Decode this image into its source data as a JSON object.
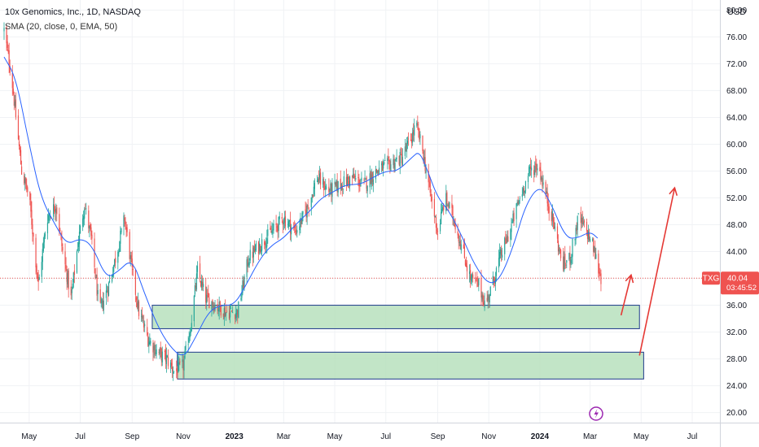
{
  "header": {
    "title": "10x Genomics, Inc., 1D, NASDAQ",
    "indicator": "SMA (20, close, 0, EMA, 50)",
    "currency": "USD"
  },
  "badges": {
    "symbol": "TXG",
    "price": "40.04",
    "countdown": "03:45:52"
  },
  "colors": {
    "up": "#26a69a",
    "down": "#ef5350",
    "sma": "#2962ff",
    "zone_fill": "#b7e1bd",
    "zone_stroke": "#1e3a8a",
    "arrow": "#e53935",
    "price_line": "#ef5350"
  },
  "chart_data": {
    "type": "candlestick",
    "symbol": "TXG",
    "x_ticks": [
      "May",
      "Jul",
      "Sep",
      "Nov",
      "2023",
      "Mar",
      "May",
      "Jul",
      "Sep",
      "Nov",
      "2024",
      "Mar",
      "May",
      "Jul"
    ],
    "y_ticks": [
      20,
      24,
      28,
      32,
      36,
      40,
      44,
      48,
      52,
      56,
      60,
      64,
      68,
      72,
      76,
      80
    ],
    "ylim": [
      18.5,
      81.5
    ],
    "last_price": 40.04,
    "series": [
      {
        "name": "price",
        "points": [
          [
            "2022-04-01",
            77
          ],
          [
            "2022-04-10",
            70
          ],
          [
            "2022-04-22",
            56
          ],
          [
            "2022-05-01",
            52
          ],
          [
            "2022-05-12",
            39
          ],
          [
            "2022-05-22",
            49
          ],
          [
            "2022-06-02",
            51
          ],
          [
            "2022-06-10",
            44
          ],
          [
            "2022-06-20",
            37
          ],
          [
            "2022-06-28",
            45
          ],
          [
            "2022-07-06",
            51
          ],
          [
            "2022-07-14",
            46
          ],
          [
            "2022-07-24",
            35
          ],
          [
            "2022-08-04",
            39
          ],
          [
            "2022-08-14",
            44
          ],
          [
            "2022-08-23",
            49
          ],
          [
            "2022-09-01",
            41
          ],
          [
            "2022-09-09",
            35
          ],
          [
            "2022-09-20",
            31
          ],
          [
            "2022-10-01",
            29
          ],
          [
            "2022-10-12",
            28
          ],
          [
            "2022-10-22",
            26
          ],
          [
            "2022-11-01",
            27
          ],
          [
            "2022-11-10",
            33
          ],
          [
            "2022-11-18",
            41
          ],
          [
            "2022-11-28",
            37
          ],
          [
            "2022-12-10",
            36
          ],
          [
            "2022-12-22",
            35
          ],
          [
            "2023-01-05",
            35
          ],
          [
            "2023-01-18",
            43
          ],
          [
            "2023-02-01",
            45
          ],
          [
            "2023-02-15",
            47
          ],
          [
            "2023-03-01",
            49
          ],
          [
            "2023-03-15",
            47
          ],
          [
            "2023-03-28",
            50
          ],
          [
            "2023-04-10",
            55
          ],
          [
            "2023-04-24",
            53
          ],
          [
            "2023-05-08",
            54
          ],
          [
            "2023-05-22",
            55
          ],
          [
            "2023-06-05",
            54
          ],
          [
            "2023-06-20",
            56
          ],
          [
            "2023-07-05",
            57
          ],
          [
            "2023-07-20",
            58
          ],
          [
            "2023-08-01",
            61
          ],
          [
            "2023-08-06",
            63
          ],
          [
            "2023-08-14",
            59
          ],
          [
            "2023-08-24",
            52
          ],
          [
            "2023-09-01",
            47
          ],
          [
            "2023-09-10",
            52
          ],
          [
            "2023-09-20",
            49
          ],
          [
            "2023-10-01",
            44
          ],
          [
            "2023-10-10",
            40
          ],
          [
            "2023-10-20",
            39
          ],
          [
            "2023-10-28",
            36
          ],
          [
            "2023-11-05",
            39
          ],
          [
            "2023-11-14",
            43
          ],
          [
            "2023-11-26",
            47
          ],
          [
            "2023-12-08",
            52
          ],
          [
            "2023-12-20",
            56
          ],
          [
            "2023-12-30",
            57
          ],
          [
            "2024-01-07",
            53
          ],
          [
            "2024-01-16",
            49
          ],
          [
            "2024-01-28",
            42
          ],
          [
            "2024-02-06",
            43
          ],
          [
            "2024-02-16",
            49
          ],
          [
            "2024-02-26",
            47
          ],
          [
            "2024-03-04",
            45
          ],
          [
            "2024-03-14",
            40
          ]
        ]
      },
      {
        "name": "SMA",
        "points": [
          [
            "2022-04-01",
            73
          ],
          [
            "2022-04-15",
            70
          ],
          [
            "2022-05-01",
            60
          ],
          [
            "2022-05-15",
            52
          ],
          [
            "2022-06-01",
            48
          ],
          [
            "2022-06-15",
            45
          ],
          [
            "2022-07-01",
            46
          ],
          [
            "2022-07-15",
            45
          ],
          [
            "2022-08-01",
            40
          ],
          [
            "2022-08-15",
            41
          ],
          [
            "2022-09-01",
            43
          ],
          [
            "2022-09-15",
            38
          ],
          [
            "2022-10-01",
            33
          ],
          [
            "2022-10-15",
            30
          ],
          [
            "2022-11-01",
            28
          ],
          [
            "2022-11-15",
            31
          ],
          [
            "2022-12-01",
            35
          ],
          [
            "2022-12-15",
            36
          ],
          [
            "2023-01-01",
            36
          ],
          [
            "2023-01-15",
            39
          ],
          [
            "2023-02-01",
            43
          ],
          [
            "2023-02-15",
            45
          ],
          [
            "2023-03-01",
            46
          ],
          [
            "2023-03-15",
            48
          ],
          [
            "2023-04-01",
            50
          ],
          [
            "2023-04-15",
            52
          ],
          [
            "2023-05-01",
            53
          ],
          [
            "2023-05-15",
            54
          ],
          [
            "2023-06-01",
            54
          ],
          [
            "2023-06-15",
            55
          ],
          [
            "2023-07-01",
            56
          ],
          [
            "2023-07-15",
            56
          ],
          [
            "2023-08-01",
            58
          ],
          [
            "2023-08-10",
            59
          ],
          [
            "2023-08-20",
            56
          ],
          [
            "2023-09-01",
            52
          ],
          [
            "2023-09-15",
            50
          ],
          [
            "2023-10-01",
            46
          ],
          [
            "2023-10-15",
            42
          ],
          [
            "2023-11-01",
            39
          ],
          [
            "2023-11-15",
            40
          ],
          [
            "2023-12-01",
            45
          ],
          [
            "2023-12-15",
            51
          ],
          [
            "2024-01-01",
            54
          ],
          [
            "2024-01-15",
            51
          ],
          [
            "2024-02-01",
            46
          ],
          [
            "2024-02-15",
            46
          ],
          [
            "2024-03-01",
            47
          ],
          [
            "2024-03-10",
            46
          ]
        ]
      }
    ],
    "zones": [
      {
        "from": "2022-09-25",
        "to": "2024-04-29",
        "low": 32.5,
        "high": 36.0
      },
      {
        "from": "2022-10-25",
        "to": "2024-05-04",
        "low": 25.0,
        "high": 29.0
      }
    ],
    "arrows": [
      {
        "from": [
          "2024-04-07",
          34.5
        ],
        "to": [
          "2024-04-19",
          40.5
        ]
      },
      {
        "from": [
          "2024-04-29",
          28.5
        ],
        "to": [
          "2024-06-10",
          53.5
        ]
      }
    ],
    "grid": true,
    "legend": "none"
  }
}
